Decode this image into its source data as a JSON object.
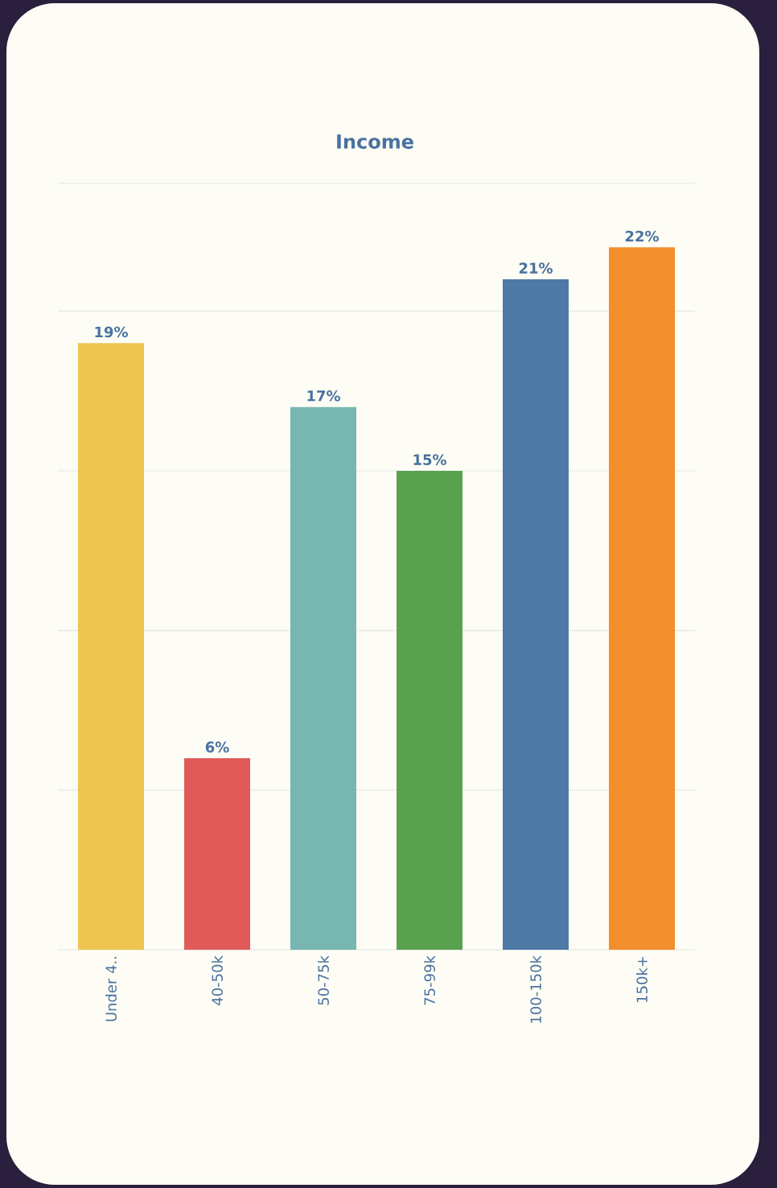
{
  "chart_data": {
    "type": "bar",
    "title": "Income",
    "categories": [
      "Under 4..",
      "40-50k",
      "50-75k",
      "75-99k",
      "100-150k",
      "150k+"
    ],
    "values": [
      19,
      6,
      17,
      15,
      21,
      22
    ],
    "value_labels": [
      "19%",
      "6%",
      "17%",
      "15%",
      "21%",
      "22%"
    ],
    "colors": [
      "#ecc550",
      "#e05a5a",
      "#76b7b2",
      "#59a14f",
      "#4e79a7",
      "#f28e2b"
    ],
    "ylim": [
      0,
      24
    ],
    "yticks": [
      {
        "value": 0,
        "label": null
      },
      {
        "value": 5,
        "label": null
      },
      {
        "value": 10,
        "label": null
      },
      {
        "value": 15,
        "label": null
      },
      {
        "value": 20,
        "label": null
      },
      {
        "value": 24,
        "label": null
      }
    ],
    "grid": "y"
  }
}
